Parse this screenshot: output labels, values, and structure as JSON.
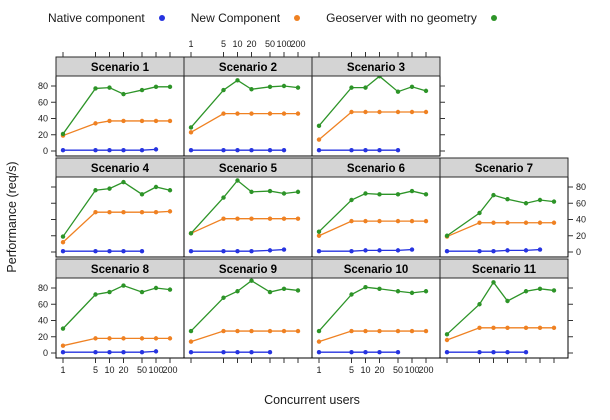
{
  "legend": {
    "items": [
      {
        "label": "Native component",
        "color": "#2633e0"
      },
      {
        "label": "New Component",
        "color": "#ef8122"
      },
      {
        "label": "Geoserver with no geometry",
        "color": "#2d9428"
      }
    ]
  },
  "axes": {
    "x_label": "Concurrent users",
    "y_label": "Performance (req/s)",
    "x_ticks": [
      1,
      5,
      10,
      20,
      50,
      100,
      200
    ],
    "y_ticks": [
      0,
      20,
      40,
      60,
      80
    ]
  },
  "styles": {
    "strip_fill": "#d4d4d4",
    "strip_border": "#2a2a2a",
    "panel_border": "#000000",
    "tick_color": "#333333",
    "text_color": "#1a1a1a"
  },
  "chart_data": {
    "type": "line",
    "title": "",
    "xlabel": "Concurrent users",
    "ylabel": "Performance (req/s)",
    "x_scale": "log",
    "x": [
      1,
      5,
      10,
      20,
      50,
      100,
      200
    ],
    "xlim": [
      1,
      200
    ],
    "ylim": [
      -4,
      93
    ],
    "y_ticks": [
      0,
      20,
      40,
      60,
      80
    ],
    "grid": "off",
    "legend_position": "top",
    "layout": {
      "rows": 3,
      "cols": 4,
      "empty_cells": [
        [
          0,
          3
        ]
      ]
    },
    "series_names": [
      "Native component",
      "New Component",
      "Geoserver with no geometry"
    ],
    "panels": [
      {
        "title": "Scenario 1",
        "row": 0,
        "col": 0,
        "series": [
          {
            "name": "Native component",
            "color": "#2633e0",
            "x": [
              1,
              5,
              10,
              20,
              50,
              100
            ],
            "y": [
              1,
              1,
              1,
              1,
              1,
              2
            ]
          },
          {
            "name": "New Component",
            "color": "#ef8122",
            "x": [
              1,
              5,
              10,
              20,
              50,
              100,
              200
            ],
            "y": [
              19,
              34,
              37,
              37,
              37,
              37,
              37
            ]
          },
          {
            "name": "Geoserver with no geometry",
            "color": "#2d9428",
            "x": [
              1,
              5,
              10,
              20,
              50,
              100,
              200
            ],
            "y": [
              21,
              77,
              78,
              70,
              75,
              79,
              79
            ]
          }
        ]
      },
      {
        "title": "Scenario 2",
        "row": 0,
        "col": 1,
        "series": [
          {
            "name": "Native component",
            "color": "#2633e0",
            "x": [
              1,
              5,
              10,
              20,
              50,
              100
            ],
            "y": [
              1,
              1,
              1,
              1,
              1,
              1
            ]
          },
          {
            "name": "New Component",
            "color": "#ef8122",
            "x": [
              1,
              5,
              10,
              20,
              50,
              100,
              200
            ],
            "y": [
              23,
              46,
              46,
              46,
              46,
              46,
              46
            ]
          },
          {
            "name": "Geoserver with no geometry",
            "color": "#2d9428",
            "x": [
              1,
              5,
              10,
              20,
              50,
              100,
              200
            ],
            "y": [
              29,
              75,
              87,
              76,
              79,
              80,
              78
            ]
          }
        ]
      },
      {
        "title": "Scenario 3",
        "row": 0,
        "col": 2,
        "series": [
          {
            "name": "Native component",
            "color": "#2633e0",
            "x": [
              1,
              5,
              10,
              20,
              50
            ],
            "y": [
              1,
              1,
              1,
              1,
              1
            ]
          },
          {
            "name": "New Component",
            "color": "#ef8122",
            "x": [
              1,
              5,
              10,
              20,
              50,
              100,
              200
            ],
            "y": [
              14,
              48,
              48,
              48,
              48,
              48,
              48
            ]
          },
          {
            "name": "Geoserver with no geometry",
            "color": "#2d9428",
            "x": [
              1,
              5,
              10,
              20,
              50,
              100,
              200
            ],
            "y": [
              31,
              78,
              78,
              92,
              73,
              79,
              74
            ]
          }
        ]
      },
      {
        "title": "Scenario 4",
        "row": 1,
        "col": 0,
        "series": [
          {
            "name": "Native component",
            "color": "#2633e0",
            "x": [
              1,
              5,
              10,
              20,
              50
            ],
            "y": [
              1,
              1,
              1,
              1,
              1
            ]
          },
          {
            "name": "New Component",
            "color": "#ef8122",
            "x": [
              1,
              5,
              10,
              20,
              50,
              100,
              200
            ],
            "y": [
              12,
              49,
              49,
              49,
              49,
              49,
              50
            ]
          },
          {
            "name": "Geoserver with no geometry",
            "color": "#2d9428",
            "x": [
              1,
              5,
              10,
              20,
              50,
              100,
              200
            ],
            "y": [
              19,
              76,
              78,
              86,
              71,
              80,
              76
            ]
          }
        ]
      },
      {
        "title": "Scenario 5",
        "row": 1,
        "col": 1,
        "series": [
          {
            "name": "Native component",
            "color": "#2633e0",
            "x": [
              1,
              5,
              10,
              20,
              50,
              100
            ],
            "y": [
              1,
              1,
              1,
              1,
              2,
              3
            ]
          },
          {
            "name": "New Component",
            "color": "#ef8122",
            "x": [
              1,
              5,
              10,
              20,
              50,
              100,
              200
            ],
            "y": [
              23,
              41,
              41,
              41,
              41,
              41,
              41
            ]
          },
          {
            "name": "Geoserver with no geometry",
            "color": "#2d9428",
            "x": [
              1,
              5,
              10,
              20,
              50,
              100,
              200
            ],
            "y": [
              23,
              67,
              88,
              74,
              75,
              72,
              74
            ]
          }
        ]
      },
      {
        "title": "Scenario 6",
        "row": 1,
        "col": 2,
        "series": [
          {
            "name": "Native component",
            "color": "#2633e0",
            "x": [
              1,
              5,
              10,
              20,
              50,
              100
            ],
            "y": [
              1,
              1,
              2,
              2,
              2,
              3
            ]
          },
          {
            "name": "New Component",
            "color": "#ef8122",
            "x": [
              1,
              5,
              10,
              20,
              50,
              100,
              200
            ],
            "y": [
              20,
              38,
              38,
              38,
              38,
              38,
              38
            ]
          },
          {
            "name": "Geoserver with no geometry",
            "color": "#2d9428",
            "x": [
              1,
              5,
              10,
              20,
              50,
              100,
              200
            ],
            "y": [
              25,
              64,
              72,
              71,
              71,
              75,
              71
            ]
          }
        ]
      },
      {
        "title": "Scenario 7",
        "row": 1,
        "col": 3,
        "series": [
          {
            "name": "Native component",
            "color": "#2633e0",
            "x": [
              1,
              5,
              10,
              20,
              50,
              100
            ],
            "y": [
              1,
              1,
              1,
              2,
              2,
              3
            ]
          },
          {
            "name": "New Component",
            "color": "#ef8122",
            "x": [
              1,
              5,
              10,
              20,
              50,
              100,
              200
            ],
            "y": [
              19,
              36,
              36,
              36,
              36,
              36,
              36
            ]
          },
          {
            "name": "Geoserver with no geometry",
            "color": "#2d9428",
            "x": [
              1,
              5,
              10,
              20,
              50,
              100,
              200
            ],
            "y": [
              20,
              48,
              70,
              65,
              60,
              64,
              62
            ]
          }
        ]
      },
      {
        "title": "Scenario 8",
        "row": 2,
        "col": 0,
        "series": [
          {
            "name": "Native component",
            "color": "#2633e0",
            "x": [
              1,
              5,
              10,
              20,
              50,
              100
            ],
            "y": [
              1,
              1,
              1,
              1,
              1,
              2
            ]
          },
          {
            "name": "New Component",
            "color": "#ef8122",
            "x": [
              1,
              5,
              10,
              20,
              50,
              100,
              200
            ],
            "y": [
              9,
              18,
              18,
              18,
              18,
              18,
              18
            ]
          },
          {
            "name": "Geoserver with no geometry",
            "color": "#2d9428",
            "x": [
              1,
              5,
              10,
              20,
              50,
              100,
              200
            ],
            "y": [
              30,
              72,
              75,
              83,
              75,
              80,
              78
            ]
          }
        ]
      },
      {
        "title": "Scenario 9",
        "row": 2,
        "col": 1,
        "series": [
          {
            "name": "Native component",
            "color": "#2633e0",
            "x": [
              1,
              5,
              10,
              20,
              50
            ],
            "y": [
              1,
              1,
              1,
              1,
              1
            ]
          },
          {
            "name": "New Component",
            "color": "#ef8122",
            "x": [
              1,
              5,
              10,
              20,
              50,
              100,
              200
            ],
            "y": [
              14,
              27,
              27,
              27,
              27,
              27,
              27
            ]
          },
          {
            "name": "Geoserver with no geometry",
            "color": "#2d9428",
            "x": [
              1,
              5,
              10,
              20,
              50,
              100,
              200
            ],
            "y": [
              27,
              68,
              76,
              89,
              75,
              79,
              77
            ]
          }
        ]
      },
      {
        "title": "Scenario 10",
        "row": 2,
        "col": 2,
        "series": [
          {
            "name": "Native component",
            "color": "#2633e0",
            "x": [
              1,
              5,
              10,
              20,
              50
            ],
            "y": [
              1,
              1,
              1,
              1,
              1
            ]
          },
          {
            "name": "New Component",
            "color": "#ef8122",
            "x": [
              1,
              5,
              10,
              20,
              50,
              100,
              200
            ],
            "y": [
              14,
              27,
              27,
              27,
              27,
              27,
              27
            ]
          },
          {
            "name": "Geoserver with no geometry",
            "color": "#2d9428",
            "x": [
              1,
              5,
              10,
              20,
              50,
              100,
              200
            ],
            "y": [
              27,
              72,
              81,
              79,
              76,
              74,
              76
            ]
          }
        ]
      },
      {
        "title": "Scenario 11",
        "row": 2,
        "col": 3,
        "series": [
          {
            "name": "Native component",
            "color": "#2633e0",
            "x": [
              1,
              5,
              10,
              20,
              50
            ],
            "y": [
              1,
              1,
              1,
              1,
              1
            ]
          },
          {
            "name": "New Component",
            "color": "#ef8122",
            "x": [
              1,
              5,
              10,
              20,
              50,
              100,
              200
            ],
            "y": [
              16,
              31,
              31,
              31,
              31,
              31,
              31
            ]
          },
          {
            "name": "Geoserver with no geometry",
            "color": "#2d9428",
            "x": [
              1,
              5,
              10,
              20,
              50,
              100,
              200
            ],
            "y": [
              23,
              60,
              87,
              64,
              76,
              79,
              77
            ]
          }
        ]
      }
    ]
  }
}
